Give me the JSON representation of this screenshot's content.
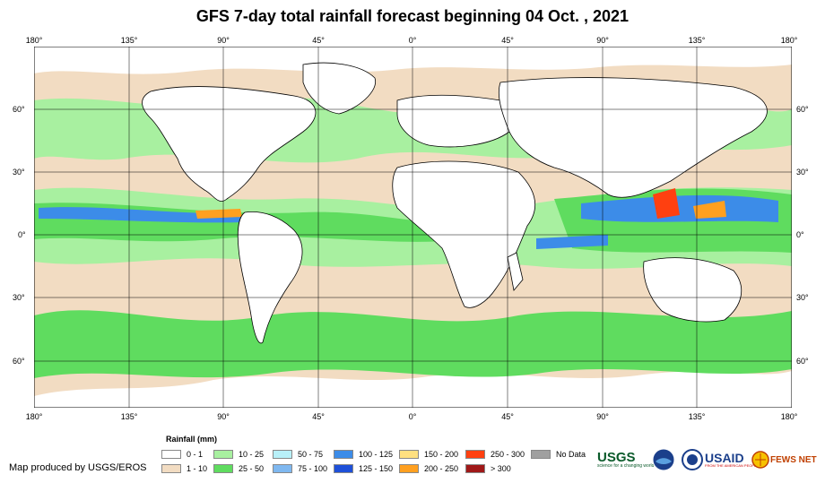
{
  "title": "GFS 7-day total rainfall forecast beginning 04 Oct. , 2021",
  "lon_labels": [
    "180°",
    "135°",
    "90°",
    "45°",
    "0°",
    "45°",
    "90°",
    "135°",
    "180°"
  ],
  "lat_labels": [
    "60°",
    "30°",
    "0°",
    "30°",
    "60°"
  ],
  "legend": {
    "title": "Rainfall (mm)",
    "items": [
      {
        "label": "0 - 1",
        "color": "#ffffff"
      },
      {
        "label": "1 - 10",
        "color": "#f2dcc2"
      },
      {
        "label": "10 - 25",
        "color": "#a8f0a0"
      },
      {
        "label": "25 - 50",
        "color": "#5fdc5f"
      },
      {
        "label": "50 - 75",
        "color": "#b8f0f8"
      },
      {
        "label": "75 - 100",
        "color": "#7fb8f0"
      },
      {
        "label": "100 - 125",
        "color": "#3c8ce8"
      },
      {
        "label": "125 - 150",
        "color": "#1e50d8"
      },
      {
        "label": "150 - 200",
        "color": "#ffe080"
      },
      {
        "label": "200 - 250",
        "color": "#ffa020"
      },
      {
        "label": "250 - 300",
        "color": "#ff4010"
      },
      {
        "label": "> 300",
        "color": "#a01818"
      },
      {
        "label": "No Data",
        "color": "#a0a0a0"
      }
    ]
  },
  "credit": "Map produced by USGS/EROS",
  "logos": {
    "usgs": "USGS",
    "usgs_tagline": "science for a changing world",
    "usaid": "USAID",
    "usaid_tagline": "FROM THE AMERICAN PEOPLE",
    "fews": "FEWS NET"
  }
}
